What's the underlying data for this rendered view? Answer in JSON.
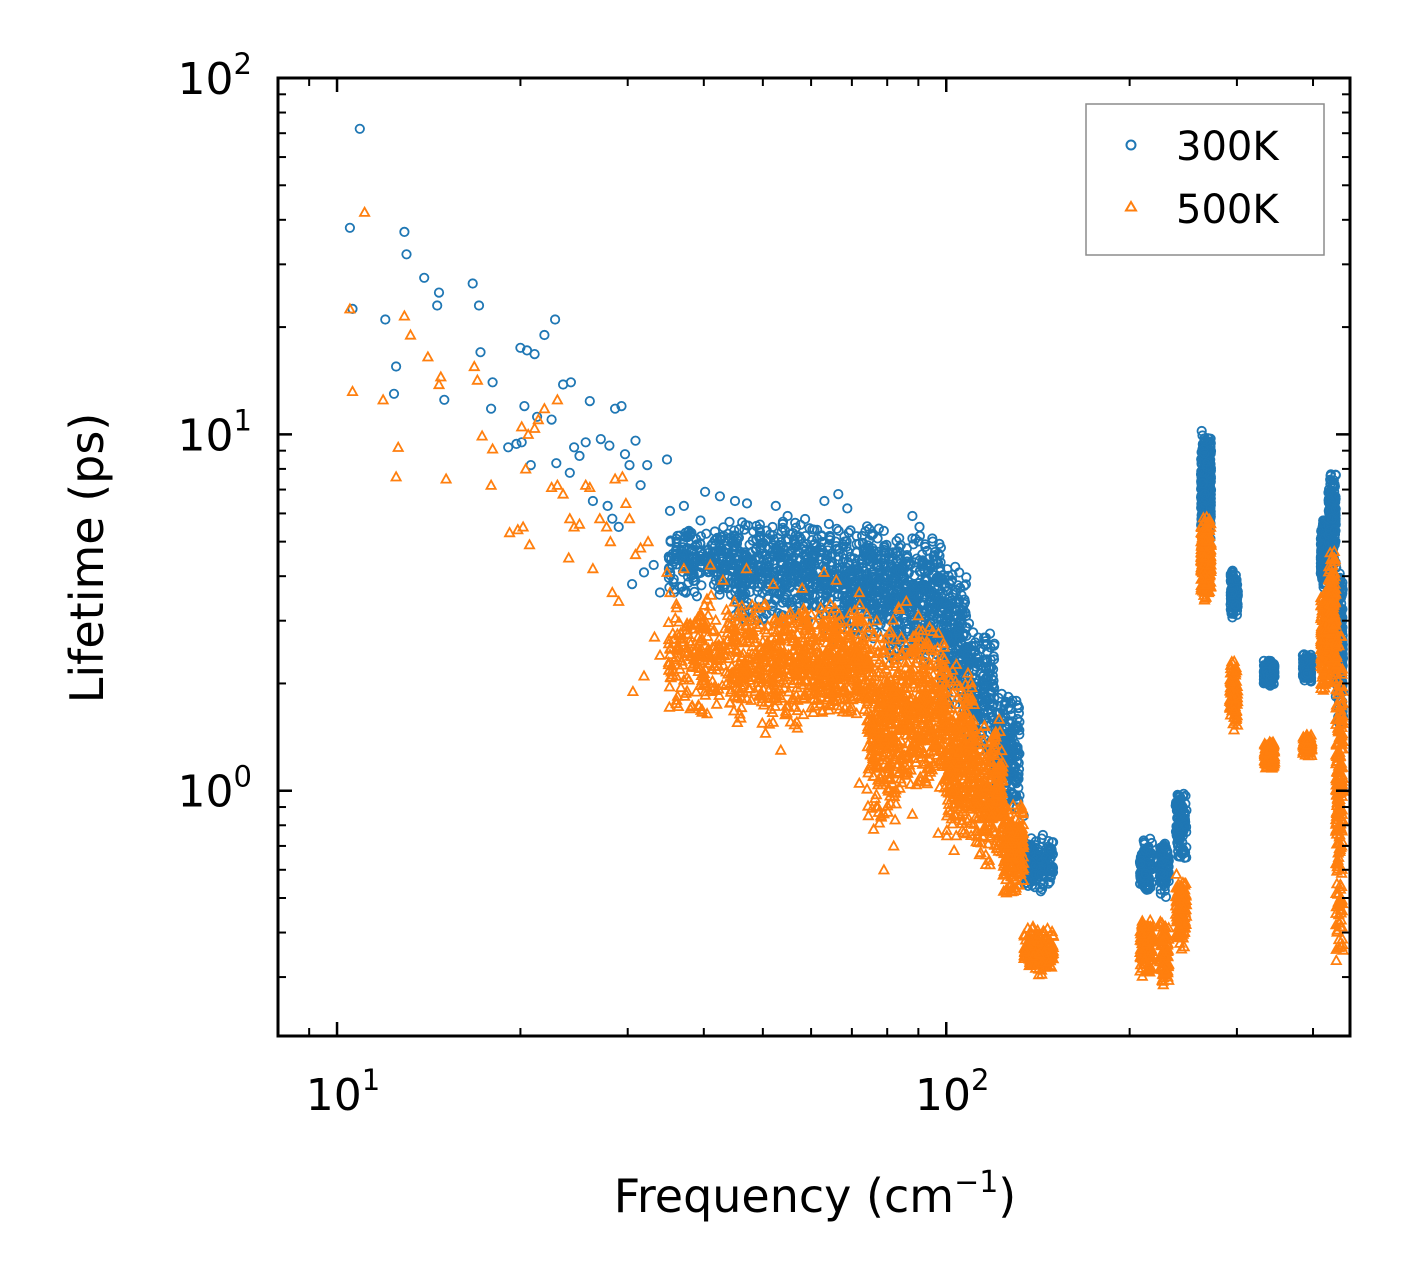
{
  "chart_data": {
    "type": "scatter",
    "xscale": "log",
    "yscale": "log",
    "xlim": [
      8.0,
      460
    ],
    "ylim": [
      0.205,
      100
    ],
    "xlabel": "Frequency (cm",
    "xlabel_sup": "−1",
    "xlabel_end": ")",
    "ylabel": "Lifetime (ps)",
    "x_ticks": [
      {
        "value": 10,
        "base": "10",
        "exp": "1"
      },
      {
        "value": 100,
        "base": "10",
        "exp": "2"
      }
    ],
    "y_ticks": [
      {
        "value": 1,
        "base": "10",
        "exp": "0"
      },
      {
        "value": 10,
        "base": "10",
        "exp": "1"
      },
      {
        "value": 100,
        "base": "10",
        "exp": "2"
      }
    ],
    "legend": {
      "location": "upper right"
    },
    "series": [
      {
        "name": "300K",
        "marker": "circle",
        "color": "#1f77b4",
        "points": [
          [
            10.5,
            38
          ],
          [
            10.9,
            72
          ],
          [
            10.6,
            22.5
          ],
          [
            12.0,
            21
          ],
          [
            12.5,
            15.5
          ],
          [
            12.4,
            13
          ],
          [
            12.9,
            37
          ],
          [
            13.0,
            32
          ],
          [
            13.9,
            27.5
          ],
          [
            14.7,
            25
          ],
          [
            14.6,
            23
          ],
          [
            15.0,
            12.5
          ],
          [
            16.7,
            26.5
          ],
          [
            17.1,
            23
          ],
          [
            17.2,
            17
          ],
          [
            18.0,
            14
          ],
          [
            17.9,
            11.8
          ],
          [
            19.1,
            9.2
          ],
          [
            19.7,
            9.4
          ],
          [
            20.1,
            9.5
          ],
          [
            20.0,
            17.5
          ],
          [
            20.5,
            17.2
          ],
          [
            21.1,
            16.8
          ],
          [
            20.3,
            12
          ],
          [
            21.3,
            11.2
          ],
          [
            21.9,
            19
          ],
          [
            22.5,
            11
          ],
          [
            22.8,
            21
          ],
          [
            20.8,
            8.2
          ],
          [
            22.9,
            8.3
          ],
          [
            23.5,
            13.8
          ],
          [
            24.2,
            14
          ],
          [
            24.5,
            9.2
          ],
          [
            25.0,
            8.7
          ],
          [
            24.1,
            7.8
          ],
          [
            25.6,
            9.5
          ],
          [
            26.0,
            12.4
          ],
          [
            26.3,
            6.5
          ],
          [
            27.1,
            9.7
          ],
          [
            27.8,
            6.3
          ],
          [
            28.0,
            9.3
          ],
          [
            28.6,
            11.8
          ],
          [
            29.3,
            12
          ],
          [
            29.7,
            8.8
          ],
          [
            28.3,
            5.8
          ],
          [
            30.2,
            8.2
          ],
          [
            30.9,
            9.6
          ],
          [
            31.5,
            7.2
          ],
          [
            32.3,
            8.2
          ],
          [
            29.0,
            5.5
          ],
          [
            33.1,
            4.3
          ],
          [
            34.8,
            8.5
          ],
          [
            35.2,
            6.1
          ],
          [
            37.1,
            6.3
          ],
          [
            30.5,
            3.8
          ],
          [
            31.9,
            4.1
          ],
          [
            33.9,
            3.6
          ],
          [
            36.0,
            4.7
          ],
          [
            38.0,
            5.2
          ],
          [
            40.2,
            6.9
          ],
          [
            42.5,
            6.7
          ],
          [
            45.0,
            6.5
          ],
          [
            47.1,
            6.4
          ],
          [
            52.5,
            6.3
          ],
          [
            54.9,
            5.9
          ],
          [
            63.1,
            6.5
          ],
          [
            66.5,
            6.8
          ],
          [
            68.8,
            6.2
          ],
          [
            88.0,
            5.9
          ],
          [
            90.4,
            5.5
          ],
          [
            95.0,
            5.0
          ],
          [
            105.0,
            3.4
          ],
          [
            112.5,
            2.4
          ],
          [
            118.0,
            1.9
          ],
          [
            123.0,
            1.35
          ],
          [
            128.0,
            1.1
          ],
          [
            134.0,
            0.85
          ]
        ],
        "bands": [
          {
            "x": [
              35,
              45
            ],
            "y": [
              3.4,
              5.8
            ],
            "n": 230
          },
          {
            "x": [
              45,
              62
            ],
            "y": [
              2.9,
              6.0
            ],
            "n": 420
          },
          {
            "x": [
              62,
              80
            ],
            "y": [
              2.6,
              5.7
            ],
            "n": 380
          },
          {
            "x": [
              80,
              98
            ],
            "y": [
              2.2,
              5.4
            ],
            "n": 380
          },
          {
            "x": [
              98,
              108
            ],
            "y": [
              1.6,
              4.5
            ],
            "n": 230
          },
          {
            "x": [
              108,
              120
            ],
            "y": [
              1.15,
              3.1
            ],
            "n": 210
          },
          {
            "x": [
              120,
              132
            ],
            "y": [
              0.85,
              1.9
            ],
            "n": 210
          },
          {
            "x": [
              134,
              150
            ],
            "y": [
              0.52,
              0.76
            ],
            "n": 170
          },
          {
            "x": [
              208,
              218
            ],
            "y": [
              0.5,
              0.74
            ],
            "n": 110
          },
          {
            "x": [
              224,
              232
            ],
            "y": [
              0.5,
              0.75
            ],
            "n": 90
          },
          {
            "x": [
              238,
              248
            ],
            "y": [
              0.6,
              1.02
            ],
            "n": 120
          },
          {
            "x": [
              262,
              272
            ],
            "y": [
              5.0,
              10.3
            ],
            "n": 320
          },
          {
            "x": [
              293,
              301
            ],
            "y": [
              3.0,
              4.2
            ],
            "n": 110
          },
          {
            "x": [
              332,
              346
            ],
            "y": [
              1.95,
              2.35
            ],
            "n": 150
          },
          {
            "x": [
              385,
              398
            ],
            "y": [
              2.0,
              2.45
            ],
            "n": 130
          },
          {
            "x": [
              412,
              424
            ],
            "y": [
              3.6,
              5.9
            ],
            "n": 220
          },
          {
            "x": [
              424,
              436
            ],
            "y": [
              4.0,
              8.2
            ],
            "n": 200
          },
          {
            "x": [
              436,
              448
            ],
            "y": [
              1.5,
              4.6
            ],
            "n": 220
          }
        ]
      },
      {
        "name": "500K",
        "marker": "triangle",
        "color": "#ff7f0e",
        "points": [
          [
            10.5,
            22.5
          ],
          [
            11.1,
            42
          ],
          [
            10.6,
            13.2
          ],
          [
            11.9,
            12.5
          ],
          [
            12.6,
            9.2
          ],
          [
            12.5,
            7.6
          ],
          [
            12.9,
            21.5
          ],
          [
            13.2,
            19
          ],
          [
            14.1,
            16.5
          ],
          [
            14.8,
            14.5
          ],
          [
            14.7,
            13.8
          ],
          [
            15.1,
            7.5
          ],
          [
            16.8,
            15.5
          ],
          [
            17.0,
            14.2
          ],
          [
            17.3,
            9.9
          ],
          [
            18.0,
            9.1
          ],
          [
            17.9,
            7.2
          ],
          [
            19.2,
            5.3
          ],
          [
            19.8,
            5.4
          ],
          [
            20.2,
            5.5
          ],
          [
            20.1,
            10.5
          ],
          [
            20.6,
            10
          ],
          [
            21.1,
            10.4
          ],
          [
            20.4,
            8
          ],
          [
            21.4,
            11
          ],
          [
            21.9,
            11.8
          ],
          [
            22.5,
            7.1
          ],
          [
            23.0,
            12.5
          ],
          [
            20.7,
            4.9
          ],
          [
            23.0,
            7.2
          ],
          [
            23.5,
            6.8
          ],
          [
            24.1,
            5.8
          ],
          [
            24.5,
            5.5
          ],
          [
            25.0,
            5.6
          ],
          [
            24.0,
            4.5
          ],
          [
            25.6,
            7.2
          ],
          [
            26.0,
            7.1
          ],
          [
            26.3,
            4.2
          ],
          [
            27.0,
            5.8
          ],
          [
            27.7,
            5.5
          ],
          [
            28.1,
            5.0
          ],
          [
            28.6,
            7.5
          ],
          [
            29.4,
            7.6
          ],
          [
            29.8,
            6.4
          ],
          [
            28.3,
            3.6
          ],
          [
            30.2,
            5.8
          ],
          [
            30.9,
            4.6
          ],
          [
            31.5,
            4.8
          ],
          [
            32.4,
            5.0
          ],
          [
            29.0,
            3.4
          ],
          [
            33.2,
            2.7
          ],
          [
            34.8,
            4.1
          ],
          [
            35.2,
            3.6
          ],
          [
            37.1,
            4.2
          ],
          [
            30.6,
            1.9
          ],
          [
            31.9,
            2.1
          ],
          [
            33.9,
            2.4
          ],
          [
            36.1,
            2.5
          ],
          [
            38.0,
            1.7
          ],
          [
            40.2,
            2.2
          ],
          [
            41.0,
            4.3
          ],
          [
            43.0,
            3.9
          ],
          [
            47.0,
            4.2
          ],
          [
            52.0,
            3.8
          ],
          [
            58.0,
            3.7
          ],
          [
            63.0,
            4.1
          ],
          [
            66.0,
            3.9
          ],
          [
            72.0,
            3.6
          ],
          [
            86.0,
            3.4
          ],
          [
            90.0,
            3.1
          ],
          [
            95.0,
            2.8
          ],
          [
            42.0,
            1.75
          ],
          [
            46.0,
            1.6
          ],
          [
            50.5,
            1.45
          ],
          [
            53.5,
            1.3
          ],
          [
            57.0,
            1.5
          ],
          [
            72.0,
            1.05
          ],
          [
            76.0,
            0.78
          ],
          [
            79.0,
            0.6
          ],
          [
            82.0,
            0.7
          ],
          [
            88.0,
            0.86
          ],
          [
            97.0,
            0.76
          ],
          [
            103.0,
            0.68
          ],
          [
            112.0,
            0.72
          ],
          [
            118.0,
            0.62
          ],
          [
            124.0,
            0.58
          ],
          [
            128.0,
            0.66
          ]
        ],
        "bands": [
          {
            "x": [
              35,
              45
            ],
            "y": [
              1.6,
              3.6
            ],
            "n": 230
          },
          {
            "x": [
              45,
              62
            ],
            "y": [
              1.5,
              3.5
            ],
            "n": 420
          },
          {
            "x": [
              62,
              74
            ],
            "y": [
              1.55,
              3.4
            ],
            "n": 320
          },
          {
            "x": [
              74,
              84
            ],
            "y": [
              0.75,
              3.3
            ],
            "n": 330
          },
          {
            "x": [
              84,
              100
            ],
            "y": [
              0.95,
              3.0
            ],
            "n": 380
          },
          {
            "x": [
              100,
              112
            ],
            "y": [
              0.7,
              2.3
            ],
            "n": 300
          },
          {
            "x": [
              112,
              124
            ],
            "y": [
              0.6,
              1.6
            ],
            "n": 240
          },
          {
            "x": [
              124,
              134
            ],
            "y": [
              0.5,
              0.95
            ],
            "n": 200
          },
          {
            "x": [
              134,
              150
            ],
            "y": [
              0.3,
              0.42
            ],
            "n": 170
          },
          {
            "x": [
              208,
              218
            ],
            "y": [
              0.3,
              0.45
            ],
            "n": 110
          },
          {
            "x": [
              224,
              232
            ],
            "y": [
              0.28,
              0.44
            ],
            "n": 90
          },
          {
            "x": [
              238,
              248
            ],
            "y": [
              0.35,
              0.62
            ],
            "n": 120
          },
          {
            "x": [
              262,
              272
            ],
            "y": [
              3.4,
              6.0
            ],
            "n": 300
          },
          {
            "x": [
              292,
              301
            ],
            "y": [
              1.45,
              2.4
            ],
            "n": 110
          },
          {
            "x": [
              333,
              346
            ],
            "y": [
              1.15,
              1.4
            ],
            "n": 150
          },
          {
            "x": [
              385,
              398
            ],
            "y": [
              1.25,
              1.45
            ],
            "n": 130
          },
          {
            "x": [
              412,
              424
            ],
            "y": [
              1.9,
              3.7
            ],
            "n": 220
          },
          {
            "x": [
              424,
              436
            ],
            "y": [
              2.0,
              4.8
            ],
            "n": 200
          },
          {
            "x": [
              436,
              448
            ],
            "y": [
              0.3,
              3.0
            ],
            "n": 230
          }
        ]
      }
    ]
  }
}
